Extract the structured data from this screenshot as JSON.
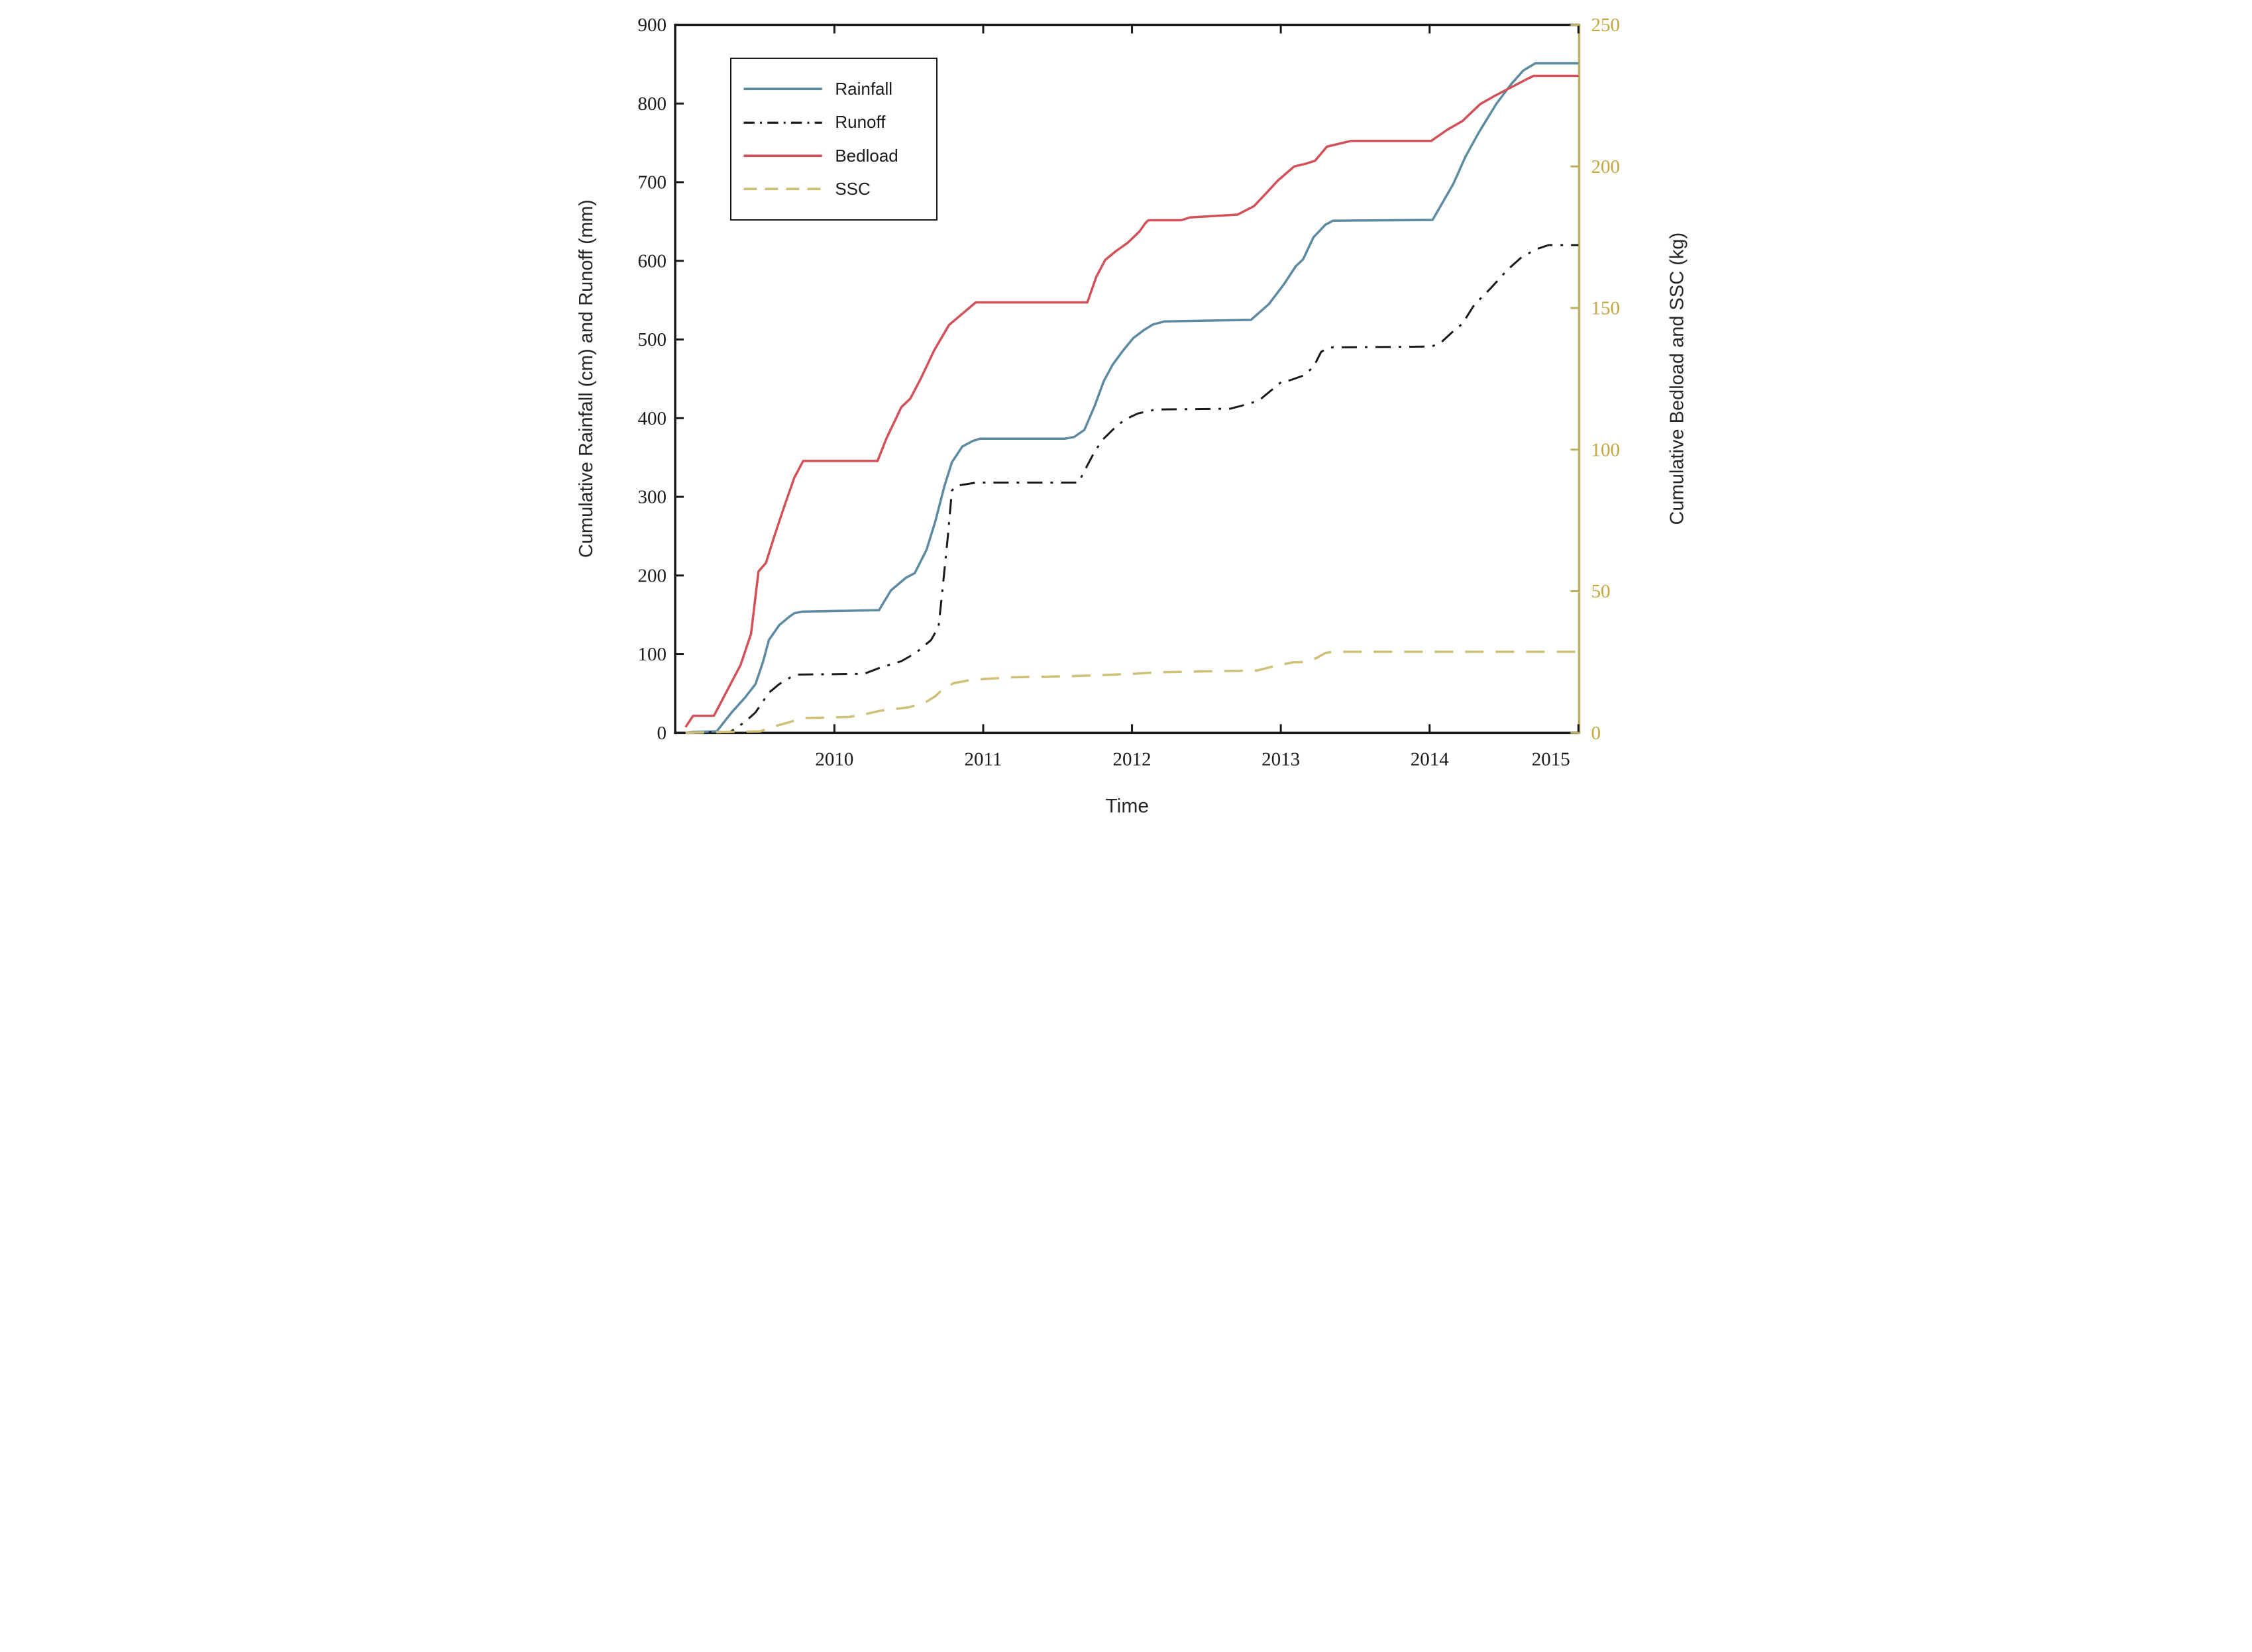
{
  "figure": {
    "background": "#ffffff",
    "border_color": "#1a1a1a"
  },
  "axes": {
    "x_title": "Time",
    "left_title": "Cumulative Rainfall (cm) and Runoff (mm)",
    "right_title": "Cumulative Bedload and SSC (kg)",
    "text_color": "#262626",
    "right_axis_color": "#c2a63e",
    "right_axis_line_color": "#bcb062"
  },
  "legend": {
    "items": [
      {
        "label": "Rainfall",
        "color": "#5c8aa0",
        "style": "solid"
      },
      {
        "label": "Runoff",
        "color": "#1a1a1a",
        "style": "dashdot"
      },
      {
        "label": "Bedload",
        "color": "#d25057",
        "style": "solid"
      },
      {
        "label": "SSC",
        "color": "#cfc078",
        "style": "dashed"
      }
    ]
  },
  "chart_data": {
    "type": "line",
    "title": "",
    "xlabel": "Time",
    "x_range": [
      2008.93,
      2015.005
    ],
    "x_ticks": [
      2010,
      2011,
      2012,
      2013,
      2014,
      2015
    ],
    "x_tick_labels": [
      "2010",
      "2011",
      "2012",
      "2013",
      "2014",
      "2015"
    ],
    "grid": false,
    "legend_position": "upper-left-inside",
    "left_axis": {
      "label": "Cumulative Rainfall (cm) and Runoff (mm)",
      "range": [
        0,
        900
      ],
      "ticks": [
        0,
        100,
        200,
        300,
        400,
        500,
        600,
        700,
        800,
        900
      ],
      "color": "#262626"
    },
    "right_axis": {
      "label": "Cumulative Bedload and SSC (kg)",
      "range": [
        0,
        250
      ],
      "ticks": [
        0,
        50,
        100,
        150,
        200,
        250
      ],
      "color": "#c2a63e"
    },
    "series": [
      {
        "name": "Rainfall",
        "axis": "left",
        "color": "#5c8aa0",
        "style": "solid",
        "width": 7,
        "points": [
          [
            2009.0,
            0
          ],
          [
            2009.05,
            1
          ],
          [
            2009.21,
            2
          ],
          [
            2009.31,
            26
          ],
          [
            2009.4,
            45
          ],
          [
            2009.47,
            62
          ],
          [
            2009.52,
            90
          ],
          [
            2009.56,
            118
          ],
          [
            2009.63,
            137
          ],
          [
            2009.7,
            148
          ],
          [
            2009.73,
            152
          ],
          [
            2009.78,
            154
          ],
          [
            2010.3,
            156
          ],
          [
            2010.38,
            181
          ],
          [
            2010.48,
            197
          ],
          [
            2010.54,
            203
          ],
          [
            2010.62,
            233
          ],
          [
            2010.68,
            270
          ],
          [
            2010.74,
            314
          ],
          [
            2010.79,
            344
          ],
          [
            2010.86,
            364
          ],
          [
            2010.93,
            371
          ],
          [
            2010.98,
            374
          ],
          [
            2011.55,
            374
          ],
          [
            2011.61,
            376
          ],
          [
            2011.68,
            385
          ],
          [
            2011.75,
            416
          ],
          [
            2011.81,
            447
          ],
          [
            2011.87,
            468
          ],
          [
            2011.94,
            486
          ],
          [
            2012.01,
            502
          ],
          [
            2012.08,
            512
          ],
          [
            2012.14,
            519
          ],
          [
            2012.22,
            523
          ],
          [
            2012.8,
            525
          ],
          [
            2012.92,
            545
          ],
          [
            2013.02,
            570
          ],
          [
            2013.1,
            593
          ],
          [
            2013.15,
            602
          ],
          [
            2013.22,
            630
          ],
          [
            2013.3,
            646
          ],
          [
            2013.35,
            651
          ],
          [
            2014.02,
            652
          ],
          [
            2014.09,
            675
          ],
          [
            2014.16,
            698
          ],
          [
            2014.24,
            732
          ],
          [
            2014.33,
            763
          ],
          [
            2014.45,
            800
          ],
          [
            2014.55,
            825
          ],
          [
            2014.63,
            842
          ],
          [
            2014.71,
            851
          ],
          [
            2015.0,
            851
          ]
        ]
      },
      {
        "name": "Runoff",
        "axis": "left",
        "color": "#1a1a1a",
        "style": "dashdot",
        "width": 6,
        "points": [
          [
            2009.0,
            0
          ],
          [
            2009.3,
            1
          ],
          [
            2009.4,
            14
          ],
          [
            2009.47,
            26
          ],
          [
            2009.56,
            51
          ],
          [
            2009.63,
            62
          ],
          [
            2009.7,
            70
          ],
          [
            2009.75,
            74
          ],
          [
            2010.2,
            75
          ],
          [
            2010.31,
            83
          ],
          [
            2010.45,
            91
          ],
          [
            2010.55,
            102
          ],
          [
            2010.65,
            118
          ],
          [
            2010.7,
            135
          ],
          [
            2010.72,
            170
          ],
          [
            2010.76,
            245
          ],
          [
            2010.79,
            308
          ],
          [
            2010.82,
            314
          ],
          [
            2010.95,
            318
          ],
          [
            2011.64,
            318
          ],
          [
            2011.7,
            340
          ],
          [
            2011.75,
            358
          ],
          [
            2011.81,
            374
          ],
          [
            2011.88,
            387
          ],
          [
            2011.95,
            398
          ],
          [
            2012.04,
            406
          ],
          [
            2012.16,
            411
          ],
          [
            2012.66,
            412
          ],
          [
            2012.74,
            416
          ],
          [
            2012.85,
            422
          ],
          [
            2012.94,
            436
          ],
          [
            2013.01,
            447
          ],
          [
            2013.06,
            448
          ],
          [
            2013.15,
            454
          ],
          [
            2013.22,
            465
          ],
          [
            2013.27,
            484
          ],
          [
            2013.31,
            489
          ],
          [
            2013.35,
            490
          ],
          [
            2014.01,
            491
          ],
          [
            2014.07,
            495
          ],
          [
            2014.15,
            509
          ],
          [
            2014.22,
            520
          ],
          [
            2014.3,
            544
          ],
          [
            2014.41,
            565
          ],
          [
            2014.52,
            588
          ],
          [
            2014.62,
            605
          ],
          [
            2014.72,
            615
          ],
          [
            2014.8,
            620
          ],
          [
            2015.0,
            620
          ]
        ]
      },
      {
        "name": "Bedload",
        "axis": "right",
        "color": "#d25057",
        "style": "solid",
        "width": 7,
        "points": [
          [
            2009.0,
            2
          ],
          [
            2009.05,
            6
          ],
          [
            2009.19,
            6
          ],
          [
            2009.28,
            15
          ],
          [
            2009.37,
            24
          ],
          [
            2009.44,
            35
          ],
          [
            2009.49,
            57
          ],
          [
            2009.54,
            60
          ],
          [
            2009.6,
            70
          ],
          [
            2009.67,
            81
          ],
          [
            2009.73,
            90
          ],
          [
            2009.79,
            96
          ],
          [
            2010.29,
            96
          ],
          [
            2010.35,
            104
          ],
          [
            2010.45,
            115
          ],
          [
            2010.51,
            118
          ],
          [
            2010.58,
            125
          ],
          [
            2010.67,
            135
          ],
          [
            2010.77,
            144
          ],
          [
            2010.86,
            148
          ],
          [
            2010.95,
            152
          ],
          [
            2011.7,
            152
          ],
          [
            2011.76,
            161
          ],
          [
            2011.82,
            167
          ],
          [
            2011.89,
            170
          ],
          [
            2011.97,
            173
          ],
          [
            2012.05,
            177
          ],
          [
            2012.09,
            180
          ],
          [
            2012.11,
            181
          ],
          [
            2012.33,
            181
          ],
          [
            2012.39,
            182
          ],
          [
            2012.71,
            183
          ],
          [
            2012.82,
            186
          ],
          [
            2012.91,
            191
          ],
          [
            2012.98,
            195
          ],
          [
            2013.09,
            200
          ],
          [
            2013.17,
            201
          ],
          [
            2013.23,
            202
          ],
          [
            2013.31,
            207
          ],
          [
            2013.47,
            209
          ],
          [
            2014.01,
            209
          ],
          [
            2014.12,
            213
          ],
          [
            2014.22,
            216
          ],
          [
            2014.34,
            222
          ],
          [
            2014.44,
            225
          ],
          [
            2014.55,
            228
          ],
          [
            2014.66,
            231
          ],
          [
            2014.7,
            232
          ],
          [
            2015.0,
            232
          ]
        ]
      },
      {
        "name": "SSC",
        "axis": "right",
        "color": "#cfc078",
        "style": "dashed",
        "width": 7,
        "points": [
          [
            2009.0,
            0
          ],
          [
            2009.5,
            0.5
          ],
          [
            2009.58,
            2
          ],
          [
            2009.7,
            3.8
          ],
          [
            2009.79,
            5.2
          ],
          [
            2010.1,
            5.6
          ],
          [
            2010.2,
            6.5
          ],
          [
            2010.31,
            7.8
          ],
          [
            2010.5,
            9
          ],
          [
            2010.62,
            11
          ],
          [
            2010.68,
            13
          ],
          [
            2010.72,
            15
          ],
          [
            2010.8,
            17.5
          ],
          [
            2010.9,
            18.5
          ],
          [
            2011.0,
            19
          ],
          [
            2011.2,
            19.6
          ],
          [
            2011.6,
            20
          ],
          [
            2012.0,
            20.8
          ],
          [
            2012.18,
            21.4
          ],
          [
            2012.84,
            22
          ],
          [
            2012.93,
            23.2
          ],
          [
            2013.08,
            24.9
          ],
          [
            2013.16,
            25
          ],
          [
            2013.24,
            26.4
          ],
          [
            2013.3,
            28.2
          ],
          [
            2013.35,
            28.6
          ],
          [
            2015.0,
            28.6
          ]
        ]
      }
    ]
  }
}
